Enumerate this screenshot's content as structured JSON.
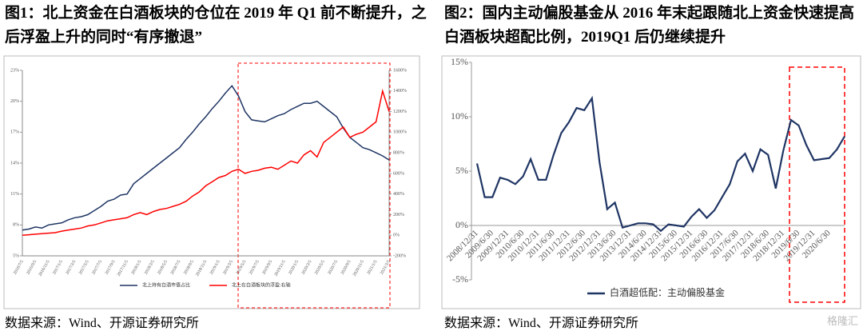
{
  "chart_data": [
    {
      "type": "line",
      "title": "图1：北上资金在白酒板块的仓位在 2019 年 Q1 前不断提升，之后浮盈上升的同时“有序撤退”",
      "source": "数据来源：Wind、开源证券研究所",
      "categories": [
        "2016/7/5",
        null,
        "2016/9/5",
        null,
        "2016/11/5",
        null,
        "2017/1/5",
        null,
        "2017/3/5",
        null,
        "2017/5/5",
        null,
        "2017/7/5",
        null,
        "2017/9/5",
        null,
        "2017/11/5",
        null,
        "2018/1/5",
        null,
        "2018/3/5",
        null,
        "2018/5/5",
        null,
        "2018/7/5",
        null,
        "2018/9/5",
        null,
        "2018/11/5",
        null,
        "2019/1/5",
        null,
        "2019/3/5",
        null,
        "2019/5/5",
        null,
        "2019/7/5",
        null,
        "2019/9/5",
        null,
        "2019/11/5",
        null,
        "2020/1/5",
        null,
        "2020/3/5",
        null,
        "2020/5/5",
        null,
        "2020/7/5",
        null,
        "2020/9/5",
        null,
        "2020/11/5",
        null,
        "2021/1/5",
        null,
        "2021/3/5"
      ],
      "series": [
        {
          "name": "北上持有白酒市值占比",
          "color": "#1f3564",
          "values": [
            7.5,
            7.6,
            7.8,
            7.7,
            8.0,
            8.1,
            8.2,
            8.5,
            8.7,
            8.8,
            9.0,
            9.4,
            9.8,
            10.3,
            10.5,
            10.9,
            11.0,
            12.0,
            12.5,
            13.0,
            13.5,
            14.0,
            14.5,
            15.0,
            15.5,
            16.3,
            17.0,
            17.8,
            18.5,
            19.3,
            20.0,
            20.8,
            21.5,
            20.5,
            19.0,
            18.2,
            18.1,
            18.0,
            18.3,
            18.6,
            18.8,
            19.2,
            19.5,
            19.8,
            19.8,
            20.0,
            19.5,
            19.0,
            18.5,
            17.4,
            16.5,
            16.0,
            15.5,
            15.3,
            15.0,
            14.7,
            14.3
          ]
        },
        {
          "name": "北上在白酒板块的浮盈:右轴",
          "color": "#ff0000",
          "axis": "y2",
          "values": [
            0,
            5,
            10,
            15,
            20,
            25,
            40,
            50,
            60,
            70,
            90,
            100,
            120,
            140,
            150,
            160,
            170,
            200,
            220,
            200,
            230,
            250,
            260,
            280,
            300,
            330,
            380,
            420,
            480,
            520,
            560,
            580,
            620,
            640,
            600,
            620,
            630,
            650,
            660,
            640,
            680,
            720,
            700,
            780,
            820,
            760,
            900,
            950,
            1000,
            1050,
            950,
            980,
            1000,
            1050,
            1100,
            1400,
            1200
          ]
        }
      ],
      "ylim": [
        5,
        23
      ],
      "yticks": [
        {
          "value": 5,
          "label": "5%"
        },
        {
          "value": 8,
          "label": "8%"
        },
        {
          "value": 11,
          "label": "11%"
        },
        {
          "value": 14,
          "label": "14%"
        },
        {
          "value": 17,
          "label": "17%"
        },
        {
          "value": 20,
          "label": "20%"
        },
        {
          "value": 23,
          "label": "23%"
        }
      ],
      "y2lim": [
        -200,
        1600
      ],
      "y2ticks": [
        {
          "value": -200,
          "label": "-200%"
        },
        {
          "value": 0,
          "label": "0%"
        },
        {
          "value": 200,
          "label": "200%"
        },
        {
          "value": 400,
          "label": "400%"
        },
        {
          "value": 600,
          "label": "600%"
        },
        {
          "value": 800,
          "label": "800%"
        },
        {
          "value": 1000,
          "label": "1000%"
        },
        {
          "value": 1200,
          "label": "1200%"
        },
        {
          "value": 1400,
          "label": "1400%"
        },
        {
          "value": 1600,
          "label": "1600%"
        }
      ]
    },
    {
      "type": "line",
      "title": "图2：国内主动偏股基金从 2016 年末起跟随北上资金快速提高白酒板块超配比例，2019Q1 后仍继续提升",
      "source": "数据来源：Wind、开源证券研究所",
      "categories": [
        "2008/12/31",
        null,
        "2009/6/30",
        null,
        "2009/12/31",
        null,
        "2010/6/30",
        null,
        "2010/12/31",
        null,
        "2011/6/30",
        null,
        "2011/12/31",
        null,
        "2012/6/30",
        null,
        "2012/12/31",
        null,
        "2013/6/30",
        null,
        "2013/12/31",
        null,
        "2014/6/30",
        null,
        "2014/12/31",
        null,
        "2015/6/30",
        null,
        "2015/12/31",
        null,
        "2016/6/30",
        null,
        "2016/12/31",
        null,
        "2017/6/30",
        null,
        "2017/12/31",
        null,
        "2018/6/30",
        null,
        "2018/12/31",
        null,
        "2019/6/30",
        null,
        "2019/12/31",
        null,
        "2020/6/30",
        null,
        null
      ],
      "series": [
        {
          "name": "白酒超低配：主动偏股基金",
          "color": "#1f3564",
          "values": [
            5.7,
            2.6,
            2.6,
            4.4,
            4.2,
            3.8,
            4.5,
            6.1,
            4.2,
            4.2,
            6.5,
            8.5,
            9.5,
            10.8,
            10.6,
            11.7,
            5.8,
            1.5,
            2.1,
            -0.2,
            0.0,
            0.2,
            0.2,
            0.1,
            -0.5,
            0.1,
            0.0,
            -0.1,
            0.8,
            1.5,
            0.7,
            1.4,
            2.6,
            3.8,
            5.9,
            6.6,
            5.0,
            7.0,
            6.5,
            3.4,
            6.9,
            9.7,
            9.2,
            7.4,
            6.0,
            6.1,
            6.2,
            7.0,
            8.2
          ]
        }
      ],
      "ylim": [
        -5,
        15
      ],
      "yticks": [
        {
          "value": -5,
          "label": "-5%"
        },
        {
          "value": 0,
          "label": "0%"
        },
        {
          "value": 5,
          "label": "5%"
        },
        {
          "value": 10,
          "label": "10%"
        },
        {
          "value": 15,
          "label": "15%"
        }
      ]
    }
  ],
  "watermark": "格隆汇"
}
